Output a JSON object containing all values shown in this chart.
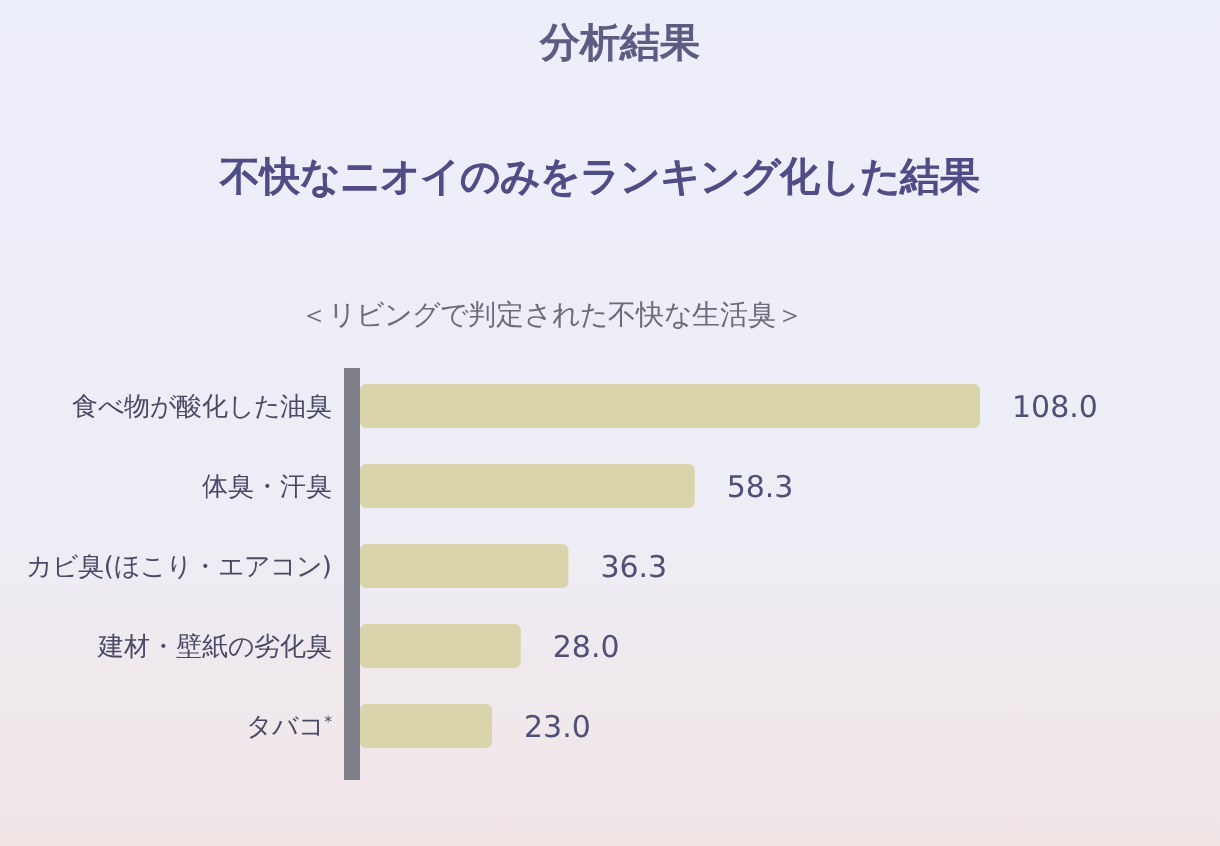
{
  "chart_data": {
    "type": "bar",
    "orientation": "horizontal",
    "title": "分析結果",
    "subtitle": "不快なニオイのみをランキング化した結果",
    "annotations": [
      "＜リビングで判定された不快な生活臭＞"
    ],
    "categories": [
      "食べ物が酸化した油臭",
      "体臭・汗臭",
      "カビ臭(ほこり・エアコン)",
      "建材・壁紙の劣化臭",
      "タバコ$^{*}$"
    ],
    "values": [
      108.0,
      58.3,
      36.3,
      28.0,
      23.0
    ],
    "value_labels": [
      "108.0",
      "58.3",
      "36.3",
      "28.0",
      "23.0"
    ],
    "color": "#d9d4a9"
  }
}
